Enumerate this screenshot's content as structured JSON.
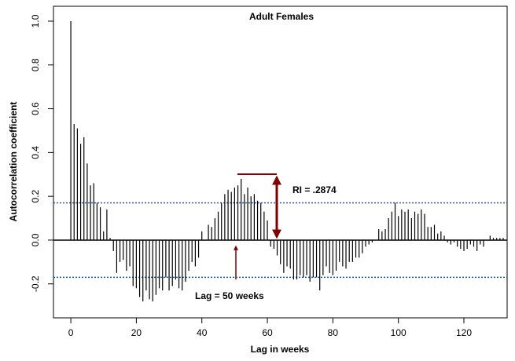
{
  "chart_data": {
    "type": "acf",
    "title": "Adult Females",
    "x_label": "Lag in weeks",
    "y_label": "Autocorrelation coefficient",
    "annotations": [
      "RI = .2874",
      "Lag = 50 weeks"
    ],
    "x": [
      0,
      1,
      2,
      3,
      4,
      5,
      6,
      7,
      8,
      9,
      10,
      11,
      12,
      13,
      14,
      15,
      16,
      17,
      18,
      19,
      20,
      21,
      22,
      23,
      24,
      25,
      26,
      27,
      28,
      29,
      30,
      31,
      32,
      33,
      34,
      35,
      36,
      37,
      38,
      39,
      40,
      41,
      42,
      43,
      44,
      45,
      46,
      47,
      48,
      49,
      50,
      51,
      52,
      53,
      54,
      55,
      56,
      57,
      58,
      59,
      60,
      61,
      62,
      63,
      64,
      65,
      66,
      67,
      68,
      69,
      70,
      71,
      72,
      73,
      74,
      75,
      76,
      77,
      78,
      79,
      80,
      81,
      82,
      83,
      84,
      85,
      86,
      87,
      88,
      89,
      90,
      91,
      92,
      93,
      94,
      95,
      96,
      97,
      98,
      99,
      100,
      101,
      102,
      103,
      104,
      105,
      106,
      107,
      108,
      109,
      110,
      111,
      112,
      113,
      114,
      115,
      116,
      117,
      118,
      119,
      120,
      121,
      122,
      123,
      124,
      125,
      126,
      127,
      128,
      129,
      130,
      131,
      132
    ],
    "values": [
      1.0,
      0.53,
      0.51,
      0.44,
      0.47,
      0.35,
      0.25,
      0.26,
      0.17,
      0.15,
      0.04,
      0.14,
      0.01,
      -0.05,
      -0.15,
      -0.1,
      -0.09,
      -0.14,
      -0.12,
      -0.21,
      -0.22,
      -0.26,
      -0.28,
      -0.23,
      -0.27,
      -0.28,
      -0.25,
      -0.22,
      -0.23,
      -0.17,
      -0.23,
      -0.21,
      -0.18,
      -0.22,
      -0.23,
      -0.19,
      -0.14,
      -0.1,
      -0.12,
      -0.08,
      0.04,
      0.0,
      0.07,
      0.06,
      0.1,
      0.13,
      0.17,
      0.21,
      0.23,
      0.22,
      0.24,
      0.25,
      0.28,
      0.21,
      0.24,
      0.2,
      0.21,
      0.18,
      0.17,
      0.13,
      0.09,
      -0.03,
      -0.04,
      -0.07,
      -0.11,
      -0.15,
      -0.12,
      -0.13,
      -0.18,
      -0.18,
      -0.16,
      -0.17,
      -0.16,
      -0.19,
      -0.17,
      -0.17,
      -0.23,
      -0.16,
      -0.12,
      -0.15,
      -0.16,
      -0.14,
      -0.1,
      -0.12,
      -0.13,
      -0.1,
      -0.1,
      -0.08,
      -0.08,
      -0.06,
      -0.03,
      -0.02,
      -0.01,
      0.0,
      0.05,
      0.04,
      0.05,
      0.1,
      0.13,
      0.17,
      0.11,
      0.14,
      0.13,
      0.14,
      0.1,
      0.13,
      0.12,
      0.14,
      0.12,
      0.06,
      0.06,
      0.07,
      0.03,
      0.04,
      0.02,
      -0.01,
      -0.02,
      -0.01,
      -0.03,
      -0.04,
      -0.05,
      -0.04,
      -0.02,
      -0.03,
      -0.05,
      -0.02,
      -0.03,
      0.0,
      0.02,
      0.01,
      0.01,
      0.01,
      0.01
    ],
    "color": "#000000",
    "conf_lines": [
      0.17,
      -0.17
    ],
    "conf_color": "#1f5a96",
    "xlim": [
      -5.3,
      133.2
    ],
    "ylim": [
      -0.355,
      1.068
    ],
    "xticks": [
      0,
      20,
      40,
      60,
      80,
      100,
      120
    ],
    "yticks": [
      {
        "value": -0.2,
        "label": "-0.2"
      },
      {
        "value": 0,
        "label": "0.0"
      },
      0.2,
      0.4,
      0.6,
      0.8,
      {
        "value": 1,
        "label": "1.0"
      }
    ]
  }
}
